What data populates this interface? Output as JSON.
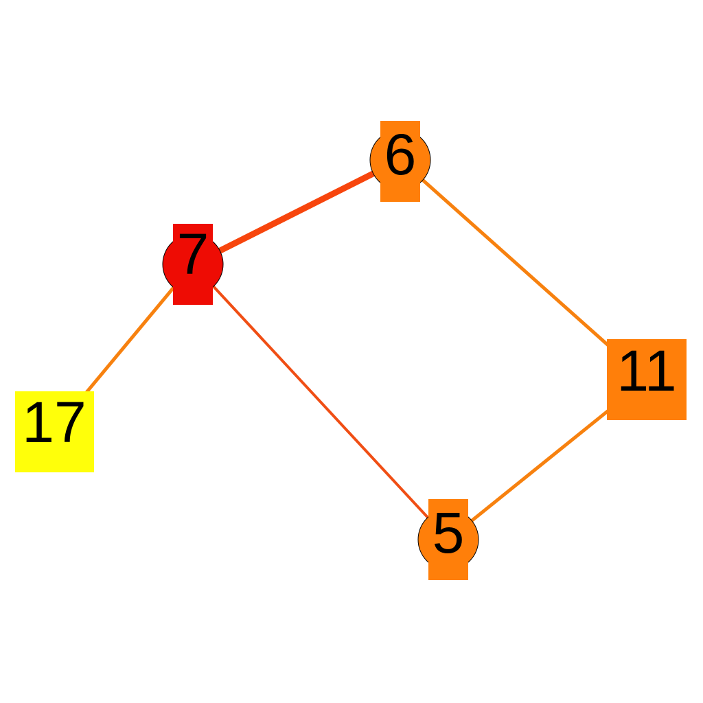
{
  "graph": {
    "nodes": [
      {
        "id": "n7",
        "label": "7",
        "color": "#ee0c04"
      },
      {
        "id": "n6",
        "label": "6",
        "color": "#ff7f0a"
      },
      {
        "id": "n5",
        "label": "5",
        "color": "#ff7f0a"
      },
      {
        "id": "n11",
        "label": "11",
        "color": "#ff7f0a"
      },
      {
        "id": "n17",
        "label": "17",
        "color": "#ffff0a"
      }
    ],
    "edges": [
      {
        "from": "n7",
        "to": "n6",
        "color": "#f7450d"
      },
      {
        "from": "n6",
        "to": "n11",
        "color": "#f7810f"
      },
      {
        "from": "n11",
        "to": "n5",
        "color": "#f7810f"
      },
      {
        "from": "n7",
        "to": "n5",
        "color": "#f04e14"
      },
      {
        "from": "n7",
        "to": "n17",
        "color": "#f7810f"
      }
    ]
  }
}
